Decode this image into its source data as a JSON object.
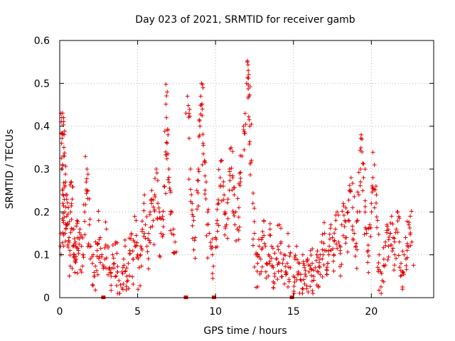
{
  "chart_data": {
    "type": "scatter",
    "title": "Day 023 of 2021, SRMTID for receiver gamb",
    "xlabel": "GPS time / hours",
    "ylabel": "SRMTID / TECUs",
    "xlim": [
      0,
      24
    ],
    "ylim": [
      0,
      0.6
    ],
    "xticks": [
      "0",
      "5",
      "10",
      "15",
      "20"
    ],
    "yticks": [
      "0",
      "0.1",
      "0.2",
      "0.3",
      "0.4",
      "0.5",
      "0.6"
    ],
    "grid": true,
    "marker": "plus",
    "color": "#e00000",
    "zero_points_x": [
      2.8,
      8.1,
      9.9,
      14.9
    ],
    "series": [
      {
        "name": "SRMTID",
        "points": [
          [
            0.05,
            0.12
          ],
          [
            0.08,
            0.43
          ],
          [
            0.1,
            0.41
          ],
          [
            0.12,
            0.36
          ],
          [
            0.15,
            0.3
          ],
          [
            0.18,
            0.25
          ],
          [
            0.2,
            0.22
          ],
          [
            0.22,
            0.18
          ],
          [
            0.25,
            0.42
          ],
          [
            0.28,
            0.38
          ],
          [
            0.3,
            0.33
          ],
          [
            0.33,
            0.2
          ],
          [
            0.35,
            0.15
          ],
          [
            0.38,
            0.27
          ],
          [
            0.4,
            0.24
          ],
          [
            0.45,
            0.19
          ],
          [
            0.5,
            0.17
          ],
          [
            0.55,
            0.21
          ],
          [
            0.6,
            0.14
          ],
          [
            0.65,
            0.11
          ],
          [
            0.7,
            0.2
          ],
          [
            0.75,
            0.27
          ],
          [
            0.8,
            0.23
          ],
          [
            0.85,
            0.12
          ],
          [
            0.9,
            0.16
          ],
          [
            0.95,
            0.1
          ],
          [
            1.0,
            0.13
          ],
          [
            1.05,
            0.09
          ],
          [
            1.1,
            0.18
          ],
          [
            1.15,
            0.14
          ],
          [
            1.2,
            0.11
          ],
          [
            1.3,
            0.16
          ],
          [
            1.4,
            0.12
          ],
          [
            1.5,
            0.1
          ],
          [
            1.6,
            0.2
          ],
          [
            1.7,
            0.27
          ],
          [
            1.75,
            0.3
          ],
          [
            1.8,
            0.25
          ],
          [
            1.9,
            0.17
          ],
          [
            2.0,
            0.12
          ],
          [
            2.1,
            0.08
          ],
          [
            2.2,
            0.05
          ],
          [
            2.3,
            0.13
          ],
          [
            2.4,
            0.11
          ],
          [
            2.5,
            0.18
          ],
          [
            2.6,
            0.14
          ],
          [
            2.7,
            0.1
          ],
          [
            2.9,
            0.09
          ],
          [
            3.0,
            0.16
          ],
          [
            3.1,
            0.12
          ],
          [
            3.2,
            0.07
          ],
          [
            3.3,
            0.05
          ],
          [
            3.4,
            0.1
          ],
          [
            3.5,
            0.08
          ],
          [
            3.6,
            0.13
          ],
          [
            3.7,
            0.06
          ],
          [
            3.8,
            0.04
          ],
          [
            3.9,
            0.03
          ],
          [
            4.0,
            0.06
          ],
          [
            4.1,
            0.09
          ],
          [
            4.2,
            0.12
          ],
          [
            4.3,
            0.05
          ],
          [
            4.4,
            0.08
          ],
          [
            4.5,
            0.11
          ],
          [
            4.6,
            0.15
          ],
          [
            4.7,
            0.09
          ],
          [
            4.8,
            0.13
          ],
          [
            4.9,
            0.18
          ],
          [
            5.0,
            0.1
          ],
          [
            5.1,
            0.07
          ],
          [
            5.2,
            0.12
          ],
          [
            5.3,
            0.16
          ],
          [
            5.4,
            0.22
          ],
          [
            5.5,
            0.17
          ],
          [
            5.6,
            0.12
          ],
          [
            5.7,
            0.15
          ],
          [
            5.8,
            0.2
          ],
          [
            5.9,
            0.25
          ],
          [
            6.0,
            0.18
          ],
          [
            6.1,
            0.24
          ],
          [
            6.2,
            0.3
          ],
          [
            6.3,
            0.22
          ],
          [
            6.4,
            0.2
          ],
          [
            6.5,
            0.15
          ],
          [
            6.6,
            0.19
          ],
          [
            6.7,
            0.26
          ],
          [
            6.8,
            0.34
          ],
          [
            6.85,
            0.42
          ],
          [
            6.9,
            0.48
          ],
          [
            6.95,
            0.38
          ],
          [
            7.0,
            0.3
          ],
          [
            7.1,
            0.25
          ],
          [
            7.2,
            0.2
          ],
          [
            7.3,
            0.16
          ],
          [
            7.4,
            0.13
          ],
          [
            8.2,
            0.47
          ],
          [
            8.3,
            0.43
          ],
          [
            8.4,
            0.3
          ],
          [
            8.5,
            0.22
          ],
          [
            8.6,
            0.18
          ],
          [
            8.7,
            0.14
          ],
          [
            8.8,
            0.25
          ],
          [
            8.9,
            0.3
          ],
          [
            9.0,
            0.4
          ],
          [
            9.05,
            0.47
          ],
          [
            9.1,
            0.5
          ],
          [
            9.15,
            0.44
          ],
          [
            9.2,
            0.36
          ],
          [
            9.3,
            0.32
          ],
          [
            9.4,
            0.27
          ],
          [
            9.5,
            0.2
          ],
          [
            9.6,
            0.15
          ],
          [
            9.7,
            0.12
          ],
          [
            9.8,
            0.1
          ],
          [
            10.0,
            0.14
          ],
          [
            10.1,
            0.18
          ],
          [
            10.2,
            0.22
          ],
          [
            10.3,
            0.28
          ],
          [
            10.4,
            0.32
          ],
          [
            10.5,
            0.26
          ],
          [
            10.6,
            0.2
          ],
          [
            10.7,
            0.17
          ],
          [
            10.8,
            0.23
          ],
          [
            10.9,
            0.3
          ],
          [
            11.0,
            0.35
          ],
          [
            11.1,
            0.28
          ],
          [
            11.2,
            0.24
          ],
          [
            11.3,
            0.2
          ],
          [
            11.4,
            0.16
          ],
          [
            11.5,
            0.21
          ],
          [
            11.6,
            0.27
          ],
          [
            11.7,
            0.33
          ],
          [
            11.8,
            0.4
          ],
          [
            11.9,
            0.43
          ],
          [
            12.0,
            0.5
          ],
          [
            12.05,
            0.55
          ],
          [
            12.1,
            0.53
          ],
          [
            12.15,
            0.47
          ],
          [
            12.2,
            0.4
          ],
          [
            12.3,
            0.32
          ],
          [
            12.4,
            0.22
          ],
          [
            12.5,
            0.15
          ],
          [
            12.6,
            0.1
          ],
          [
            12.7,
            0.08
          ],
          [
            12.8,
            0.12
          ],
          [
            12.9,
            0.09
          ],
          [
            13.0,
            0.14
          ],
          [
            13.1,
            0.18
          ],
          [
            13.2,
            0.12
          ],
          [
            13.3,
            0.08
          ],
          [
            13.4,
            0.1
          ],
          [
            13.5,
            0.16
          ],
          [
            13.6,
            0.12
          ],
          [
            13.7,
            0.07
          ],
          [
            13.8,
            0.05
          ],
          [
            13.9,
            0.09
          ],
          [
            14.0,
            0.12
          ],
          [
            14.1,
            0.17
          ],
          [
            14.2,
            0.13
          ],
          [
            14.3,
            0.08
          ],
          [
            14.4,
            0.1
          ],
          [
            14.5,
            0.06
          ],
          [
            14.6,
            0.08
          ],
          [
            14.7,
            0.12
          ],
          [
            14.8,
            0.07
          ],
          [
            15.0,
            0.05
          ],
          [
            15.1,
            0.09
          ],
          [
            15.2,
            0.12
          ],
          [
            15.3,
            0.06
          ],
          [
            15.4,
            0.08
          ],
          [
            15.5,
            0.04
          ],
          [
            15.6,
            0.1
          ],
          [
            15.7,
            0.07
          ],
          [
            15.8,
            0.05
          ],
          [
            15.9,
            0.09
          ],
          [
            16.0,
            0.06
          ],
          [
            16.1,
            0.11
          ],
          [
            16.2,
            0.08
          ],
          [
            16.3,
            0.05
          ],
          [
            16.4,
            0.07
          ],
          [
            16.5,
            0.1
          ],
          [
            16.6,
            0.06
          ],
          [
            16.7,
            0.09
          ],
          [
            16.8,
            0.13
          ],
          [
            16.9,
            0.1
          ],
          [
            17.0,
            0.15
          ],
          [
            17.1,
            0.11
          ],
          [
            17.2,
            0.08
          ],
          [
            17.3,
            0.12
          ],
          [
            17.4,
            0.17
          ],
          [
            17.5,
            0.14
          ],
          [
            17.6,
            0.1
          ],
          [
            17.7,
            0.16
          ],
          [
            17.8,
            0.2
          ],
          [
            17.9,
            0.13
          ],
          [
            18.0,
            0.11
          ],
          [
            18.1,
            0.17
          ],
          [
            18.2,
            0.22
          ],
          [
            18.3,
            0.18
          ],
          [
            18.4,
            0.14
          ],
          [
            18.5,
            0.2
          ],
          [
            18.6,
            0.25
          ],
          [
            18.7,
            0.28
          ],
          [
            18.8,
            0.21
          ],
          [
            18.9,
            0.15
          ],
          [
            19.0,
            0.12
          ],
          [
            19.1,
            0.18
          ],
          [
            19.2,
            0.24
          ],
          [
            19.3,
            0.3
          ],
          [
            19.35,
            0.38
          ],
          [
            19.4,
            0.34
          ],
          [
            19.5,
            0.28
          ],
          [
            19.6,
            0.2
          ],
          [
            19.7,
            0.15
          ],
          [
            19.8,
            0.11
          ],
          [
            19.9,
            0.17
          ],
          [
            20.0,
            0.22
          ],
          [
            20.1,
            0.28
          ],
          [
            20.2,
            0.31
          ],
          [
            20.3,
            0.26
          ],
          [
            20.4,
            0.18
          ],
          [
            20.5,
            0.1
          ],
          [
            20.6,
            0.06
          ],
          [
            20.7,
            0.04
          ],
          [
            20.8,
            0.09
          ],
          [
            20.9,
            0.13
          ],
          [
            21.0,
            0.17
          ],
          [
            21.1,
            0.12
          ],
          [
            21.2,
            0.15
          ],
          [
            21.3,
            0.19
          ],
          [
            21.4,
            0.14
          ],
          [
            21.5,
            0.1
          ],
          [
            21.6,
            0.16
          ],
          [
            21.7,
            0.2
          ],
          [
            21.8,
            0.13
          ],
          [
            21.9,
            0.08
          ],
          [
            22.0,
            0.06
          ],
          [
            22.1,
            0.1
          ],
          [
            22.2,
            0.14
          ],
          [
            22.3,
            0.11
          ],
          [
            22.4,
            0.17
          ],
          [
            22.5,
            0.19
          ],
          [
            22.6,
            0.13
          ]
        ]
      }
    ]
  }
}
